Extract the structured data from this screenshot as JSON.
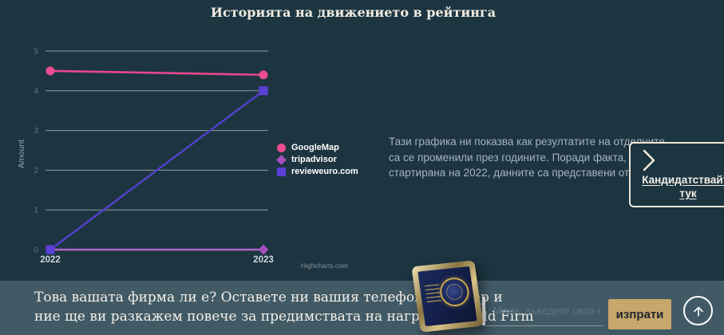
{
  "page": {
    "title": "Историята на движението в рейтинга"
  },
  "chart_data": {
    "type": "line",
    "title": "",
    "xlabel": "",
    "ylabel": "Amount",
    "categories": [
      "2022",
      "2023"
    ],
    "ylim": [
      0,
      5
    ],
    "yticks": [
      0,
      1,
      2,
      3,
      4,
      5
    ],
    "grid": true,
    "legend_position": "right-middle",
    "series": [
      {
        "name": "GoogleMap",
        "marker": "circle",
        "color": "#e8478b",
        "marker_color": "#ea4d90",
        "values": [
          4.5,
          4.4
        ]
      },
      {
        "name": "tripadvisor",
        "marker": "diamond",
        "color": "#b565c8",
        "marker_color": "#a84fc0",
        "values": [
          0,
          0
        ]
      },
      {
        "name": "revieweuro.com",
        "marker": "square",
        "color": "#5140c4",
        "marker_color": "#5b3fd6",
        "values": [
          0,
          4
        ]
      }
    ],
    "credit": "Highcharts.com"
  },
  "description": {
    "lines": [
      "Тази графика ни показва как резултатите на отделните",
      "са се променили през годините. Поради факта, че програмата",
      "стартирана на 2022, данните са представени от тази година."
    ]
  },
  "apply_card": {
    "label": "Кандидатствайте тук"
  },
  "bottom_bar": {
    "line1": "Това вашата фирма ли е? Оставете ни вашия телефонен номер и",
    "line2": "ние ще ви разкажем повече за предимствата на наградата Gold Firm",
    "input_placeholder": "Моля, въведете своя номер",
    "send_label": "изпрати"
  },
  "icons": {
    "chevron_right": "›",
    "arrow_up": "↑"
  },
  "colors": {
    "background": "#1c3541",
    "bar_background": "#415a66",
    "accent_gold": "#c8a76c",
    "grid": "#c3ccd2",
    "text_light": "#f0ebe0",
    "text_muted": "#a6b3bf"
  }
}
